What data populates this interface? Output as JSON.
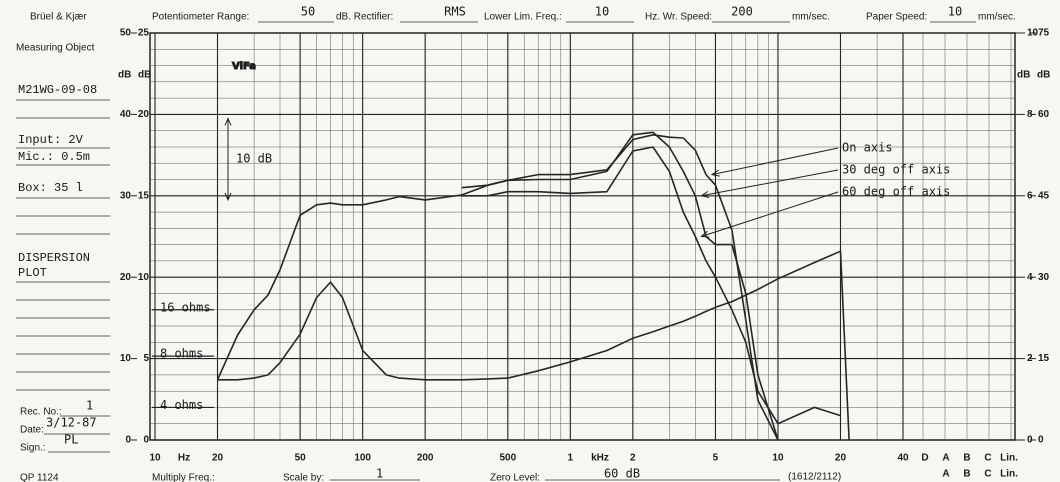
{
  "header": {
    "brand": "Brüel & Kjær",
    "potentiometer_range_label": "Potentiometer Range:",
    "potentiometer_range": 50,
    "rectifier_label": "dB. Rectifier:",
    "rectifier": "RMS",
    "lower_lim_label": "Lower Lim. Freq.:",
    "lower_lim": 10,
    "writing_speed_label": "Hz. Wr. Speed:",
    "writing_speed": 200,
    "writing_speed_unit": "mm/sec.",
    "paper_speed_label": "Paper Speed:",
    "paper_speed": 10,
    "paper_speed_unit": "mm/sec."
  },
  "sidebar": {
    "measuring_object_label": "Measuring Object",
    "measuring_object": "M21WG-09-08",
    "input": "Input: 2V",
    "mic": "Mic.: 0.5m",
    "box": "Box: 35 l",
    "plot_title_1": "DISPERSION",
    "plot_title_2": "PLOT",
    "rec_no_label": "Rec. No.:",
    "rec_no": 1,
    "date_label": "Date:",
    "date": "3/12-87",
    "sign_label": "Sign.:",
    "sign": "PL"
  },
  "footer": {
    "form_no": "QP 1124",
    "multiply_freq_label": "Multiply Freq.:",
    "scale_by_label": "Scale by:",
    "scale_by": 1,
    "zero_level_label": "Zero Level:",
    "zero_level": "60 dB",
    "code": "(1612/2112)",
    "weighting": [
      "A",
      "B",
      "C",
      "Lin."
    ]
  },
  "chart_data": {
    "type": "line",
    "logo": "ViFa",
    "x_scale": "log",
    "xlim": [
      10,
      40000
    ],
    "xticks": [
      10,
      20,
      50,
      100,
      200,
      500,
      {
        "value": 1000,
        "label": "1"
      },
      {
        "value": 2000,
        "label": "2"
      },
      {
        "value": 5000,
        "label": "5"
      },
      {
        "value": 10000,
        "label": "10"
      },
      {
        "value": 20000,
        "label": "20"
      },
      {
        "value": 40000,
        "label": "40"
      }
    ],
    "x_unit_low": "Hz",
    "x_unit_high": "kHz",
    "weighting_columns": [
      "D",
      "A",
      "B",
      "C",
      "Lin."
    ],
    "ylim": [
      0,
      50
    ],
    "yticks": [
      0,
      10,
      20,
      30,
      40,
      50
    ],
    "y2lim": [
      0,
      25
    ],
    "y2ticks": [
      0,
      5,
      10,
      15,
      20,
      25
    ],
    "right_lim_a": [
      0,
      10
    ],
    "right_ticks_a": [
      0,
      2,
      4,
      6,
      8,
      10
    ],
    "right_lim_b": [
      0,
      75
    ],
    "right_ticks_b": [
      0,
      15,
      30,
      45,
      60,
      75
    ],
    "y_unit": "dB",
    "grid": true,
    "annotation": {
      "label": "10 dB",
      "from": 29.5,
      "to": 39.5
    },
    "impedance_marks": [
      {
        "label": "16 ohms",
        "level": 16
      },
      {
        "label": "8 ohms",
        "level": 10.3
      },
      {
        "label": "4 ohms",
        "level": 4
      }
    ],
    "x": [
      20,
      25,
      30,
      35,
      40,
      50,
      60,
      70,
      80,
      100,
      130,
      150,
      200,
      300,
      400,
      500,
      700,
      1000,
      1500,
      2000,
      2500,
      3000,
      3500,
      4000,
      4500,
      5000,
      6000,
      7000,
      8000,
      10000,
      15000,
      20000,
      22000
    ],
    "series": [
      {
        "name": "On axis",
        "color": "#262626",
        "values": [
          7.4,
          12.9,
          16,
          17.8,
          20.9,
          27.6,
          28.9,
          29.1,
          28.9,
          28.9,
          29.5,
          29.9,
          29.5,
          30.1,
          31.3,
          31.9,
          32.6,
          32.6,
          33.2,
          36.9,
          37.5,
          37.2,
          37.1,
          35.6,
          32.6,
          31.3,
          25.8,
          14.7,
          4.9,
          0,
          null,
          null,
          null
        ]
      },
      {
        "name": "30 deg off axis",
        "color": "#262626",
        "values": [
          null,
          null,
          null,
          null,
          null,
          null,
          null,
          null,
          null,
          null,
          null,
          null,
          null,
          31,
          31.3,
          31.9,
          32,
          32,
          33,
          37.5,
          37.8,
          36,
          33,
          30,
          25,
          24,
          24,
          18,
          8,
          0,
          null,
          null,
          null
        ]
      },
      {
        "name": "60 deg off axis",
        "color": "#262626",
        "values": [
          null,
          null,
          null,
          null,
          null,
          null,
          null,
          null,
          null,
          null,
          null,
          null,
          null,
          30,
          30,
          30.5,
          30.5,
          30.3,
          30.5,
          35.5,
          36,
          33,
          28,
          25,
          22,
          20,
          16,
          12,
          6,
          2,
          4,
          3,
          null
        ]
      },
      {
        "color": "#262626",
        "values": [
          7.4,
          7.4,
          7.6,
          8,
          9.5,
          13,
          17.5,
          19.4,
          17.5,
          11,
          8,
          7.6,
          7.4,
          7.4,
          7.5,
          7.6,
          8.5,
          9.6,
          11,
          12.5,
          13.3,
          14,
          14.6,
          15.2,
          15.8,
          16.3,
          17,
          17.8,
          18.5,
          19.8,
          21.8,
          23.2,
          0
        ]
      }
    ]
  }
}
